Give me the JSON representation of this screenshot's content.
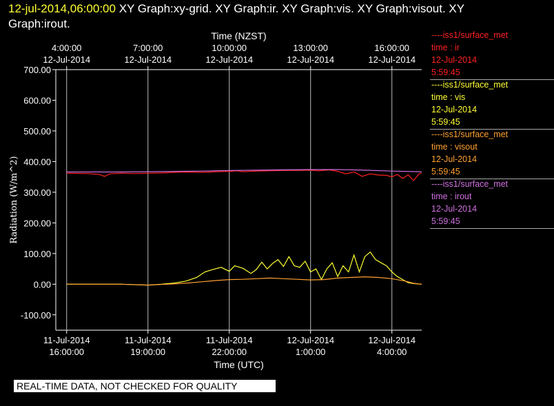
{
  "header": {
    "timestamp": "12-jul-2014,06:00:00",
    "graphs_line1": "  XY Graph:xy-grid.  XY Graph:ir.  XY Graph:vis.  XY Graph:visout.  XY",
    "graphs_line2": "Graph:irout."
  },
  "legend": [
    {
      "line1": "----iss1/surface_met",
      "line2": "time : ir",
      "line3": "12-Jul-2014",
      "line4": "5:59:45",
      "color": "#ff2020"
    },
    {
      "line1": "----iss1/surface_met",
      "line2": "time : vis",
      "line3": "12-Jul-2014",
      "line4": "5:59:45",
      "color": "#ffff33"
    },
    {
      "line1": "----iss1/surface_met",
      "line2": "time : visout",
      "line3": "12-Jul-2014",
      "line4": "5:59:45",
      "color": "#ffa030"
    },
    {
      "line1": "----iss1/surface_met",
      "line2": "time : irout",
      "line3": "12-Jul-2014",
      "line4": "5:59:45",
      "color": "#d070e0"
    }
  ],
  "banner": "REAL-TIME DATA, NOT CHECKED FOR QUALITY",
  "chart_data": {
    "type": "line",
    "xlabel": "Time (UTC)",
    "top_xlabel": "Time (NZST)",
    "ylabel": "Radiation  (W/m^2)",
    "ylim": [
      -150,
      700
    ],
    "xlim_hours": [
      15.6,
      29.1
    ],
    "yticks": [
      {
        "v": -100,
        "label": "-100.00"
      },
      {
        "v": 0,
        "label": "0.00"
      },
      {
        "v": 100,
        "label": "100.00"
      },
      {
        "v": 200,
        "label": "200.00"
      },
      {
        "v": 300,
        "label": "300.00"
      },
      {
        "v": 400,
        "label": "400.00"
      },
      {
        "v": 500,
        "label": "500.00"
      },
      {
        "v": 600,
        "label": "600.00"
      },
      {
        "v": 700,
        "label": "700.00"
      }
    ],
    "bottom_ticks": [
      {
        "h": 16,
        "date": "11-Jul-2014",
        "time": "16:00:00"
      },
      {
        "h": 19,
        "date": "11-Jul-2014",
        "time": "19:00:00"
      },
      {
        "h": 22,
        "date": "11-Jul-2014",
        "time": "22:00:00"
      },
      {
        "h": 25,
        "date": "12-Jul-2014",
        "time": "1:00:00"
      },
      {
        "h": 28,
        "date": "12-Jul-2014",
        "time": "4:00:00"
      }
    ],
    "top_ticks": [
      {
        "h": 16,
        "time": "4:00:00",
        "date": "12-Jul-2014"
      },
      {
        "h": 19,
        "time": "7:00:00",
        "date": "12-Jul-2014"
      },
      {
        "h": 22,
        "time": "10:00:00",
        "date": "12-Jul-2014"
      },
      {
        "h": 25,
        "time": "13:00:00",
        "date": "12-Jul-2014"
      },
      {
        "h": 28,
        "time": "16:00:00",
        "date": "12-Jul-2014"
      }
    ],
    "grid": true,
    "series": [
      {
        "name": "time : ir",
        "color": "#ff2020",
        "points": [
          [
            16,
            362
          ],
          [
            16.8,
            361
          ],
          [
            17.2,
            358
          ],
          [
            17.4,
            352
          ],
          [
            17.6,
            360
          ],
          [
            18,
            362
          ],
          [
            18.5,
            361
          ],
          [
            19,
            362
          ],
          [
            19.5,
            363
          ],
          [
            20,
            365
          ],
          [
            20.5,
            366
          ],
          [
            21,
            365
          ],
          [
            21.5,
            367
          ],
          [
            22,
            368
          ],
          [
            22.3,
            370
          ],
          [
            22.5,
            367
          ],
          [
            23,
            369
          ],
          [
            23.5,
            370
          ],
          [
            24,
            371
          ],
          [
            24.5,
            371
          ],
          [
            25,
            372
          ],
          [
            25.3,
            370
          ],
          [
            25.7,
            373
          ],
          [
            26,
            368
          ],
          [
            26.3,
            360
          ],
          [
            26.6,
            366
          ],
          [
            26.9,
            352
          ],
          [
            27.2,
            360
          ],
          [
            27.5,
            356
          ],
          [
            27.8,
            355
          ],
          [
            28,
            350
          ],
          [
            28.2,
            358
          ],
          [
            28.4,
            345
          ],
          [
            28.6,
            357
          ],
          [
            28.8,
            338
          ],
          [
            29.0,
            360
          ],
          [
            29.1,
            362
          ]
        ]
      },
      {
        "name": "time : irout",
        "color": "#d070e0",
        "points": [
          [
            16,
            366
          ],
          [
            17,
            366
          ],
          [
            18,
            366
          ],
          [
            19,
            367
          ],
          [
            20,
            368
          ],
          [
            21,
            369
          ],
          [
            22,
            371
          ],
          [
            23,
            372
          ],
          [
            24,
            373
          ],
          [
            25,
            374
          ],
          [
            26,
            374
          ],
          [
            27,
            372
          ],
          [
            28,
            369
          ],
          [
            29,
            367
          ],
          [
            29.1,
            366
          ]
        ]
      },
      {
        "name": "time : vis",
        "color": "#ffff33",
        "points": [
          [
            16,
            0
          ],
          [
            18,
            0
          ],
          [
            19,
            -3
          ],
          [
            19.5,
            0
          ],
          [
            20,
            4
          ],
          [
            20.4,
            10
          ],
          [
            20.8,
            22
          ],
          [
            21.1,
            40
          ],
          [
            21.4,
            48
          ],
          [
            21.7,
            55
          ],
          [
            22,
            42
          ],
          [
            22.2,
            60
          ],
          [
            22.5,
            52
          ],
          [
            22.8,
            35
          ],
          [
            23,
            48
          ],
          [
            23.2,
            72
          ],
          [
            23.4,
            50
          ],
          [
            23.6,
            68
          ],
          [
            23.8,
            80
          ],
          [
            24,
            58
          ],
          [
            24.2,
            90
          ],
          [
            24.4,
            60
          ],
          [
            24.6,
            55
          ],
          [
            24.8,
            75
          ],
          [
            25,
            40
          ],
          [
            25.2,
            50
          ],
          [
            25.4,
            15
          ],
          [
            25.6,
            50
          ],
          [
            25.8,
            70
          ],
          [
            26,
            25
          ],
          [
            26.2,
            60
          ],
          [
            26.4,
            40
          ],
          [
            26.6,
            95
          ],
          [
            26.8,
            40
          ],
          [
            27,
            90
          ],
          [
            27.2,
            105
          ],
          [
            27.4,
            80
          ],
          [
            27.6,
            70
          ],
          [
            27.8,
            60
          ],
          [
            28,
            40
          ],
          [
            28.2,
            25
          ],
          [
            28.4,
            15
          ],
          [
            28.6,
            5
          ],
          [
            28.8,
            2
          ],
          [
            29.1,
            0
          ]
        ]
      },
      {
        "name": "time : visout",
        "color": "#ffa030",
        "points": [
          [
            16,
            0
          ],
          [
            18,
            0
          ],
          [
            19,
            -3
          ],
          [
            19.5,
            -1
          ],
          [
            20,
            1
          ],
          [
            20.5,
            4
          ],
          [
            21,
            8
          ],
          [
            21.5,
            12
          ],
          [
            22,
            15
          ],
          [
            22.5,
            16
          ],
          [
            23,
            18
          ],
          [
            23.5,
            20
          ],
          [
            24,
            18
          ],
          [
            24.5,
            16
          ],
          [
            25,
            14
          ],
          [
            25.5,
            15
          ],
          [
            26,
            20
          ],
          [
            26.5,
            22
          ],
          [
            27,
            24
          ],
          [
            27.5,
            22
          ],
          [
            28,
            18
          ],
          [
            28.5,
            10
          ],
          [
            28.8,
            3
          ],
          [
            29.1,
            0
          ]
        ]
      }
    ]
  }
}
